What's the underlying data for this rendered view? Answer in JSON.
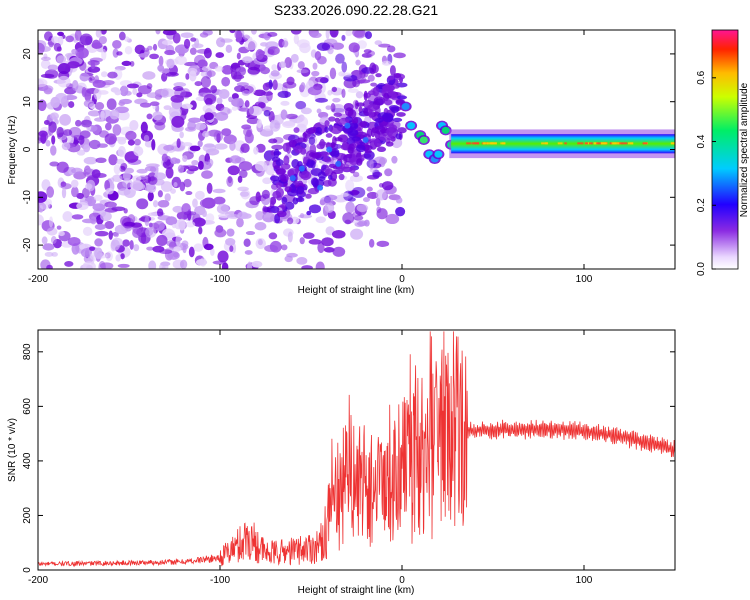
{
  "title": "S233.2026.090.22.28.G21",
  "chart_data": [
    {
      "type": "heatmap",
      "title": "S233.2026.090.22.28.G21",
      "xlabel": "Height of straight line (km)",
      "ylabel": "Frequency (Hz)",
      "xlim": [
        -200,
        150
      ],
      "ylim": [
        -25,
        25
      ],
      "xticks": [
        -200,
        -100,
        0,
        100
      ],
      "yticks": [
        -20,
        -10,
        0,
        10,
        20
      ],
      "grid": false,
      "colorbar": {
        "label": "Normalized spectral amplitude",
        "range": [
          0,
          0.75
        ],
        "ticks": [
          0.0,
          0.2,
          0.4,
          0.6
        ],
        "colormap": "rainbow (white-violet-blue-cyan-green-yellow-red-magenta)"
      },
      "features": [
        {
          "x_range": [
            -200,
            -75
          ],
          "y_range": [
            -25,
            25
          ],
          "amplitude": 0.1
        },
        {
          "x_range": [
            -75,
            0
          ],
          "y_range": [
            -15,
            25
          ],
          "amplitude": 0.15
        },
        {
          "x_range": [
            0,
            28
          ],
          "y_range": [
            -5,
            10
          ],
          "amplitude": 0.35
        },
        {
          "x_range": [
            28,
            150
          ],
          "y_range": [
            -0.5,
            3
          ],
          "amplitude": 0.5
        }
      ]
    },
    {
      "type": "line",
      "xlabel": "Height of straight line (km)",
      "ylabel": "SNR (10 * v/v)",
      "xlim": [
        -200,
        150
      ],
      "ylim": [
        0,
        880
      ],
      "xticks": [
        -200,
        -100,
        0,
        100
      ],
      "yticks": [
        0,
        200,
        400,
        600,
        800
      ],
      "grid": false,
      "color": "#ee3333",
      "x": [
        -200,
        -160,
        -120,
        -100,
        -90,
        -85,
        -80,
        -75,
        -60,
        -45,
        -38,
        -30,
        -20,
        -10,
        0,
        10,
        20,
        30,
        35,
        36,
        40,
        60,
        80,
        100,
        120,
        140,
        150
      ],
      "y": [
        22,
        25,
        30,
        45,
        90,
        120,
        100,
        60,
        70,
        90,
        230,
        300,
        320,
        260,
        350,
        380,
        450,
        500,
        480,
        510,
        510,
        515,
        515,
        510,
        490,
        460,
        440
      ]
    }
  ]
}
